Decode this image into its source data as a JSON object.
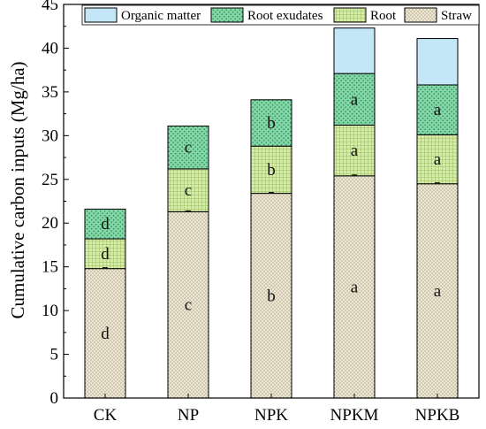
{
  "chart_data": {
    "type": "bar",
    "stacked": true,
    "categories": [
      "CK",
      "NP",
      "NPK",
      "NPKM",
      "NPKB"
    ],
    "ylabel": "Cumulative carbon inputs (Mg/ha)",
    "xlabel": "",
    "ylim": [
      0,
      45
    ],
    "yticks": [
      0,
      5,
      10,
      15,
      20,
      25,
      30,
      35,
      40,
      45
    ],
    "legend_position": "top",
    "series": [
      {
        "name": "Straw",
        "color": "#e8e2cc",
        "pattern": "dots",
        "values": [
          14.8,
          21.3,
          23.4,
          25.4,
          24.5
        ],
        "labels": [
          "d",
          "c",
          "b",
          "a",
          "a"
        ]
      },
      {
        "name": "Root",
        "color": "#cfe8a0",
        "pattern": "grid",
        "values": [
          3.4,
          4.9,
          5.4,
          5.8,
          5.6
        ],
        "labels": [
          "d",
          "c",
          "b",
          "a",
          "a"
        ]
      },
      {
        "name": "Root exudates",
        "color": "#7fd4a4",
        "pattern": "dots",
        "values": [
          3.4,
          4.9,
          5.3,
          5.9,
          5.7
        ],
        "labels": [
          "d",
          "c",
          "b",
          "a",
          "a"
        ]
      },
      {
        "name": "Organic matter",
        "color": "#c4e7f8",
        "pattern": "none",
        "values": [
          0,
          0,
          0,
          5.2,
          5.3
        ],
        "labels": [
          "",
          "",
          "",
          "",
          ""
        ]
      }
    ],
    "legend_order": [
      "Organic matter",
      "Root exudates",
      "Root",
      "Straw"
    ]
  }
}
